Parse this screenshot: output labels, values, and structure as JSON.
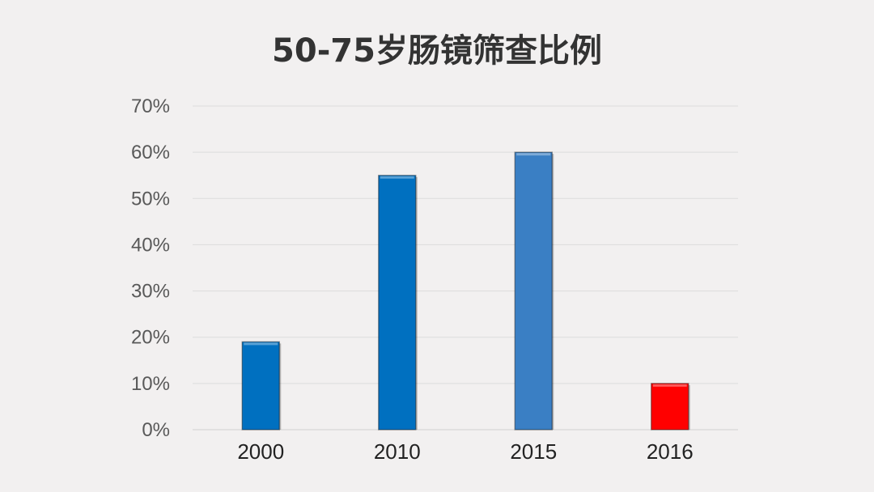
{
  "chart_data": {
    "type": "bar",
    "title": "50-75岁肠镜筛查比例",
    "xlabel": "",
    "ylabel": "",
    "categories": [
      "2000",
      "2010",
      "2015",
      "2016"
    ],
    "values": [
      19,
      55,
      60,
      10
    ],
    "value_unit": "%",
    "ylim": [
      0,
      70
    ],
    "yticks": [
      "0%",
      "10%",
      "20%",
      "30%",
      "40%",
      "50%",
      "60%",
      "70%"
    ],
    "grid": true,
    "legend": "none",
    "colors": [
      "#0070c0",
      "#0070c0",
      "#3a7fc4",
      "#ff0000"
    ]
  }
}
